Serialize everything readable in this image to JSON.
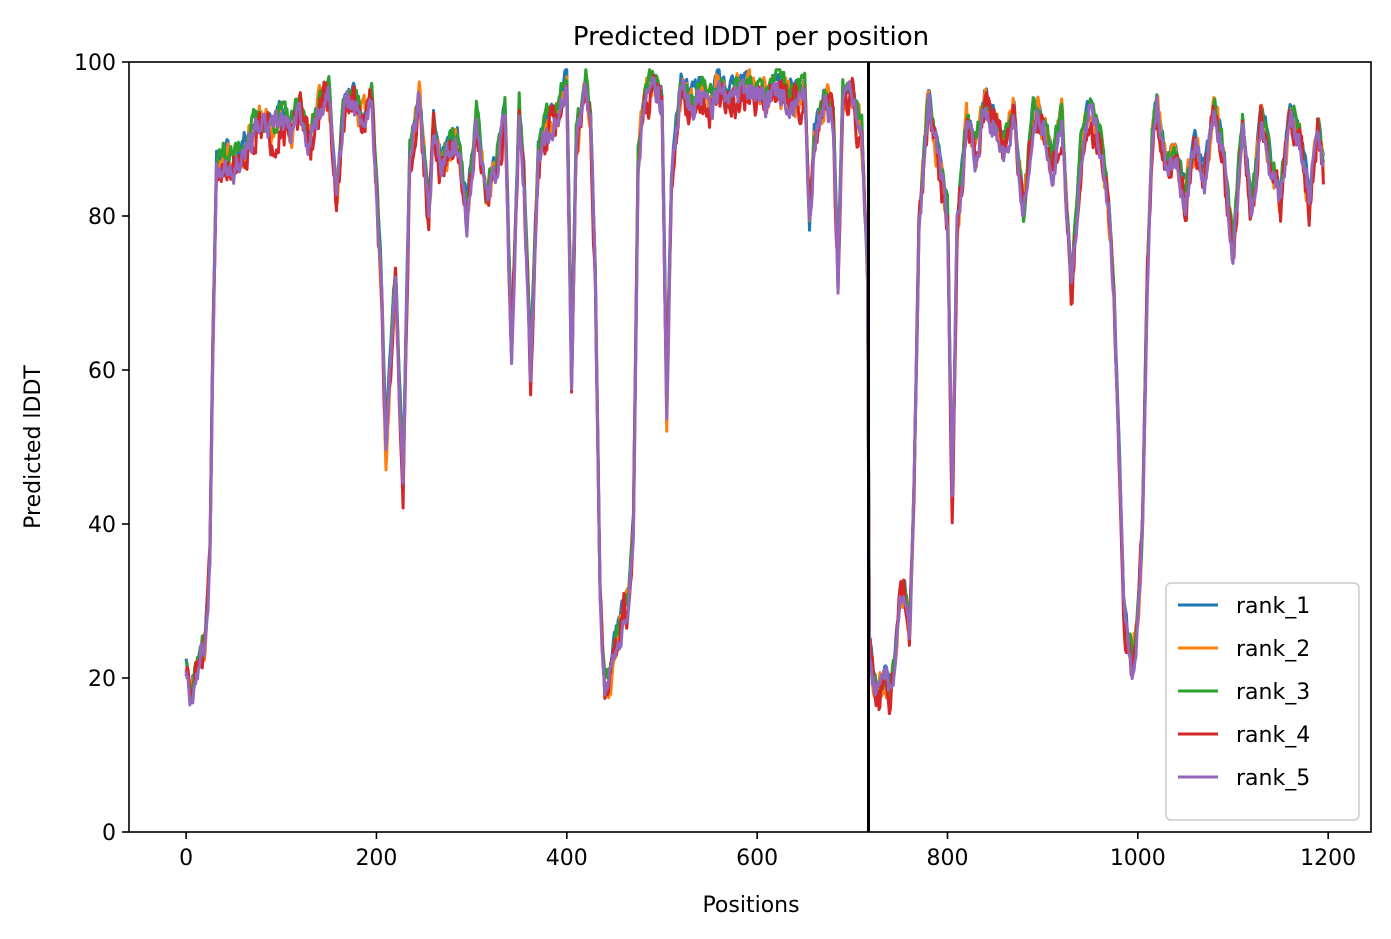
{
  "chart_data": {
    "type": "line",
    "title": "Predicted lDDT per position",
    "xlabel": "Positions",
    "ylabel": "Predicted lDDT",
    "xlim": [
      -60,
      1245
    ],
    "ylim": [
      0,
      100
    ],
    "xticks": [
      0,
      200,
      400,
      600,
      800,
      1000,
      1200
    ],
    "xtick_labels": [
      "0",
      "200",
      "400",
      "600",
      "800",
      "1000",
      "1200"
    ],
    "yticks": [
      0,
      20,
      40,
      60,
      80,
      100
    ],
    "ytick_labels": [
      "0",
      "20",
      "40",
      "60",
      "80",
      "100"
    ],
    "grid": false,
    "legend_position": "bottom-right",
    "divider_x": 717,
    "divider_color": "#000000",
    "base_profile": {
      "x": [
        0,
        5,
        10,
        15,
        20,
        25,
        28,
        32,
        40,
        50,
        60,
        70,
        80,
        90,
        100,
        110,
        120,
        130,
        140,
        150,
        158,
        165,
        175,
        185,
        195,
        205,
        210,
        215,
        220,
        228,
        235,
        245,
        255,
        260,
        268,
        275,
        285,
        295,
        305,
        315,
        325,
        335,
        342,
        350,
        355,
        362,
        370,
        380,
        390,
        400,
        405,
        410,
        420,
        425,
        430,
        435,
        440,
        445,
        450,
        455,
        460,
        465,
        470,
        475,
        480,
        490,
        500,
        505,
        510,
        520,
        530,
        540,
        550,
        560,
        570,
        580,
        590,
        600,
        610,
        620,
        630,
        640,
        650,
        655,
        660,
        670,
        680,
        685,
        690,
        700,
        710,
        716,
        718,
        722,
        728,
        735,
        740,
        745,
        750,
        755,
        760,
        765,
        770,
        780,
        790,
        800,
        805,
        810,
        820,
        830,
        840,
        850,
        860,
        870,
        880,
        890,
        900,
        910,
        920,
        930,
        940,
        950,
        960,
        970,
        975,
        980,
        985,
        990,
        995,
        1000,
        1005,
        1010,
        1015,
        1020,
        1030,
        1040,
        1050,
        1060,
        1070,
        1080,
        1090,
        1100,
        1110,
        1120,
        1130,
        1140,
        1150,
        1160,
        1170,
        1180,
        1190,
        1195
      ],
      "y": [
        22,
        18,
        21,
        23,
        25,
        35,
        62,
        86,
        88,
        87,
        89,
        91,
        92,
        91,
        93,
        91,
        94,
        89,
        95,
        96,
        82,
        93,
        96,
        92,
        96,
        72,
        50,
        62,
        72,
        45,
        88,
        95,
        80,
        92,
        86,
        88,
        90,
        80,
        93,
        82,
        86,
        94,
        62,
        94,
        85,
        60,
        88,
        92,
        93,
        98,
        60,
        90,
        97,
        92,
        72,
        30,
        18,
        20,
        24,
        26,
        29,
        30,
        40,
        88,
        93,
        98,
        95,
        55,
        85,
        97,
        95,
        96,
        94,
        97,
        95,
        96,
        97,
        96,
        95,
        97,
        96,
        95,
        96,
        78,
        90,
        95,
        93,
        72,
        95,
        95,
        90,
        72,
        24,
        20,
        18,
        20,
        18,
        22,
        30,
        32,
        25,
        45,
        78,
        95,
        88,
        80,
        42,
        78,
        92,
        88,
        95,
        92,
        88,
        94,
        80,
        94,
        92,
        86,
        93,
        70,
        88,
        94,
        90,
        80,
        70,
        50,
        30,
        24,
        22,
        28,
        40,
        72,
        90,
        95,
        86,
        88,
        82,
        90,
        85,
        95,
        88,
        75,
        92,
        80,
        94,
        86,
        82,
        94,
        90,
        82,
        92,
        86
      ]
    },
    "series": [
      {
        "name": "rank_1",
        "color": "#1f77b4",
        "y_offset": 1.0,
        "noise": 1.2,
        "seed": 11
      },
      {
        "name": "rank_2",
        "color": "#ff7f0e",
        "y_offset": 0.0,
        "noise": 2.2,
        "seed": 23
      },
      {
        "name": "rank_3",
        "color": "#2ca02c",
        "y_offset": 0.8,
        "noise": 1.6,
        "seed": 37
      },
      {
        "name": "rank_4",
        "color": "#d62728",
        "y_offset": -0.8,
        "noise": 2.4,
        "seed": 51
      },
      {
        "name": "rank_5",
        "color": "#9467bd",
        "y_offset": -0.4,
        "noise": 1.8,
        "seed": 67
      }
    ]
  }
}
